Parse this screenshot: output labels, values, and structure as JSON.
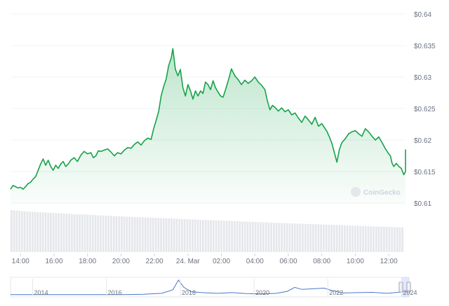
{
  "watermark": "CoinGecko",
  "chart_data": {
    "type": "area",
    "currency_prefix": "$",
    "yticks": [
      "0.61",
      "0.615",
      "0.62",
      "0.625",
      "0.63",
      "0.635",
      "0.64"
    ],
    "ylim": [
      0.61,
      0.64
    ],
    "xticks": [
      "14:00",
      "16:00",
      "18:00",
      "20:00",
      "22:00",
      "24. Mar",
      "02:00",
      "04:00",
      "06:00",
      "08:00",
      "10:00",
      "12:00"
    ],
    "xrange_hours": [
      13.4,
      37.0
    ],
    "line_color": "#16a34a",
    "grid": true,
    "series": [
      {
        "points": [
          [
            13.4,
            0.6122
          ],
          [
            13.55,
            0.6128
          ],
          [
            13.7,
            0.6126
          ],
          [
            13.85,
            0.6124
          ],
          [
            14.0,
            0.6125
          ],
          [
            14.15,
            0.6122
          ],
          [
            14.3,
            0.6126
          ],
          [
            14.45,
            0.6131
          ],
          [
            14.6,
            0.6133
          ],
          [
            14.75,
            0.6138
          ],
          [
            14.9,
            0.6142
          ],
          [
            15.05,
            0.6152
          ],
          [
            15.2,
            0.6162
          ],
          [
            15.35,
            0.617
          ],
          [
            15.5,
            0.616
          ],
          [
            15.65,
            0.6168
          ],
          [
            15.8,
            0.6158
          ],
          [
            15.95,
            0.6152
          ],
          [
            16.1,
            0.616
          ],
          [
            16.25,
            0.6155
          ],
          [
            16.4,
            0.6162
          ],
          [
            16.55,
            0.6166
          ],
          [
            16.7,
            0.6158
          ],
          [
            16.85,
            0.6162
          ],
          [
            17.0,
            0.6168
          ],
          [
            17.2,
            0.6172
          ],
          [
            17.4,
            0.6166
          ],
          [
            17.6,
            0.6176
          ],
          [
            17.8,
            0.6182
          ],
          [
            18.0,
            0.6178
          ],
          [
            18.2,
            0.618
          ],
          [
            18.35,
            0.6172
          ],
          [
            18.5,
            0.6175
          ],
          [
            18.65,
            0.6183
          ],
          [
            18.8,
            0.6182
          ],
          [
            19.0,
            0.6184
          ],
          [
            19.2,
            0.6186
          ],
          [
            19.4,
            0.6181
          ],
          [
            19.6,
            0.6175
          ],
          [
            19.8,
            0.618
          ],
          [
            20.0,
            0.6178
          ],
          [
            20.2,
            0.6184
          ],
          [
            20.4,
            0.6188
          ],
          [
            20.6,
            0.6187
          ],
          [
            20.8,
            0.6193
          ],
          [
            21.0,
            0.6197
          ],
          [
            21.2,
            0.6192
          ],
          [
            21.4,
            0.6199
          ],
          [
            21.6,
            0.6203
          ],
          [
            21.8,
            0.6201
          ],
          [
            21.95,
            0.6218
          ],
          [
            22.1,
            0.6231
          ],
          [
            22.25,
            0.6245
          ],
          [
            22.4,
            0.627
          ],
          [
            22.55,
            0.6285
          ],
          [
            22.7,
            0.6297
          ],
          [
            22.85,
            0.6318
          ],
          [
            23.0,
            0.633
          ],
          [
            23.1,
            0.6345
          ],
          [
            23.25,
            0.6312
          ],
          [
            23.4,
            0.6302
          ],
          [
            23.55,
            0.6312
          ],
          [
            23.7,
            0.6283
          ],
          [
            23.85,
            0.627
          ],
          [
            24.0,
            0.6288
          ],
          [
            24.15,
            0.6278
          ],
          [
            24.3,
            0.6265
          ],
          [
            24.45,
            0.6278
          ],
          [
            24.6,
            0.627
          ],
          [
            24.75,
            0.6278
          ],
          [
            24.9,
            0.6274
          ],
          [
            25.05,
            0.6292
          ],
          [
            25.2,
            0.6288
          ],
          [
            25.35,
            0.628
          ],
          [
            25.5,
            0.6294
          ],
          [
            25.65,
            0.6283
          ],
          [
            25.8,
            0.6276
          ],
          [
            25.95,
            0.627
          ],
          [
            26.1,
            0.6268
          ],
          [
            26.25,
            0.628
          ],
          [
            26.45,
            0.6298
          ],
          [
            26.6,
            0.6313
          ],
          [
            26.8,
            0.6302
          ],
          [
            27.0,
            0.6296
          ],
          [
            27.2,
            0.6288
          ],
          [
            27.4,
            0.6295
          ],
          [
            27.6,
            0.629
          ],
          [
            27.8,
            0.6294
          ],
          [
            28.0,
            0.63
          ],
          [
            28.2,
            0.6292
          ],
          [
            28.4,
            0.6287
          ],
          [
            28.6,
            0.628
          ],
          [
            28.75,
            0.6262
          ],
          [
            28.9,
            0.6248
          ],
          [
            29.05,
            0.6255
          ],
          [
            29.2,
            0.6252
          ],
          [
            29.4,
            0.6246
          ],
          [
            29.6,
            0.6251
          ],
          [
            29.8,
            0.6245
          ],
          [
            30.0,
            0.6248
          ],
          [
            30.2,
            0.624
          ],
          [
            30.4,
            0.6243
          ],
          [
            30.6,
            0.6235
          ],
          [
            30.8,
            0.6228
          ],
          [
            31.0,
            0.6238
          ],
          [
            31.2,
            0.6232
          ],
          [
            31.4,
            0.6225
          ],
          [
            31.6,
            0.6236
          ],
          [
            31.8,
            0.6222
          ],
          [
            32.0,
            0.6226
          ],
          [
            32.15,
            0.622
          ],
          [
            32.3,
            0.6214
          ],
          [
            32.45,
            0.6205
          ],
          [
            32.6,
            0.6195
          ],
          [
            32.75,
            0.618
          ],
          [
            32.9,
            0.6165
          ],
          [
            33.05,
            0.6185
          ],
          [
            33.2,
            0.6196
          ],
          [
            33.4,
            0.6202
          ],
          [
            33.6,
            0.621
          ],
          [
            33.8,
            0.6213
          ],
          [
            34.0,
            0.6215
          ],
          [
            34.2,
            0.621
          ],
          [
            34.4,
            0.6206
          ],
          [
            34.6,
            0.6218
          ],
          [
            34.8,
            0.6213
          ],
          [
            35.0,
            0.6206
          ],
          [
            35.2,
            0.62
          ],
          [
            35.4,
            0.6205
          ],
          [
            35.6,
            0.6196
          ],
          [
            35.8,
            0.6186
          ],
          [
            36.0,
            0.6178
          ],
          [
            36.1,
            0.6175
          ],
          [
            36.2,
            0.6163
          ],
          [
            36.3,
            0.6158
          ],
          [
            36.45,
            0.6163
          ],
          [
            36.6,
            0.6158
          ],
          [
            36.75,
            0.6155
          ],
          [
            36.9,
            0.6145
          ],
          [
            37.05,
            0.615
          ],
          [
            37.2,
            0.616
          ],
          [
            37.35,
            0.6175
          ],
          [
            37.5,
            0.617
          ],
          [
            37.6,
            0.618
          ],
          [
            37.7,
            0.6185
          ]
        ]
      }
    ],
    "volume_color": "#e5e7eb",
    "volume_start": 1.0,
    "volume_end": 0.55,
    "navigator": {
      "xticks": [
        "2014",
        "2016",
        "2018",
        "2020",
        "2022",
        "2024"
      ],
      "line_color": "#4a78c8",
      "points": [
        [
          2013.4,
          0.1
        ],
        [
          2014.0,
          0.1
        ],
        [
          2014.5,
          0.1
        ],
        [
          2015.0,
          0.1
        ],
        [
          2015.5,
          0.1
        ],
        [
          2016.0,
          0.1
        ],
        [
          2016.5,
          0.1
        ],
        [
          2017.0,
          0.12
        ],
        [
          2017.5,
          0.18
        ],
        [
          2017.8,
          0.4
        ],
        [
          2017.95,
          1.0
        ],
        [
          2018.1,
          0.55
        ],
        [
          2018.3,
          0.28
        ],
        [
          2018.6,
          0.22
        ],
        [
          2019.0,
          0.18
        ],
        [
          2019.4,
          0.22
        ],
        [
          2019.8,
          0.16
        ],
        [
          2020.2,
          0.14
        ],
        [
          2020.6,
          0.18
        ],
        [
          2020.9,
          0.3
        ],
        [
          2021.1,
          0.55
        ],
        [
          2021.3,
          0.42
        ],
        [
          2021.6,
          0.46
        ],
        [
          2021.9,
          0.5
        ],
        [
          2022.1,
          0.36
        ],
        [
          2022.4,
          0.2
        ],
        [
          2022.8,
          0.22
        ],
        [
          2023.2,
          0.24
        ],
        [
          2023.6,
          0.18
        ],
        [
          2024.0,
          0.26
        ],
        [
          2024.2,
          0.3
        ]
      ]
    }
  }
}
